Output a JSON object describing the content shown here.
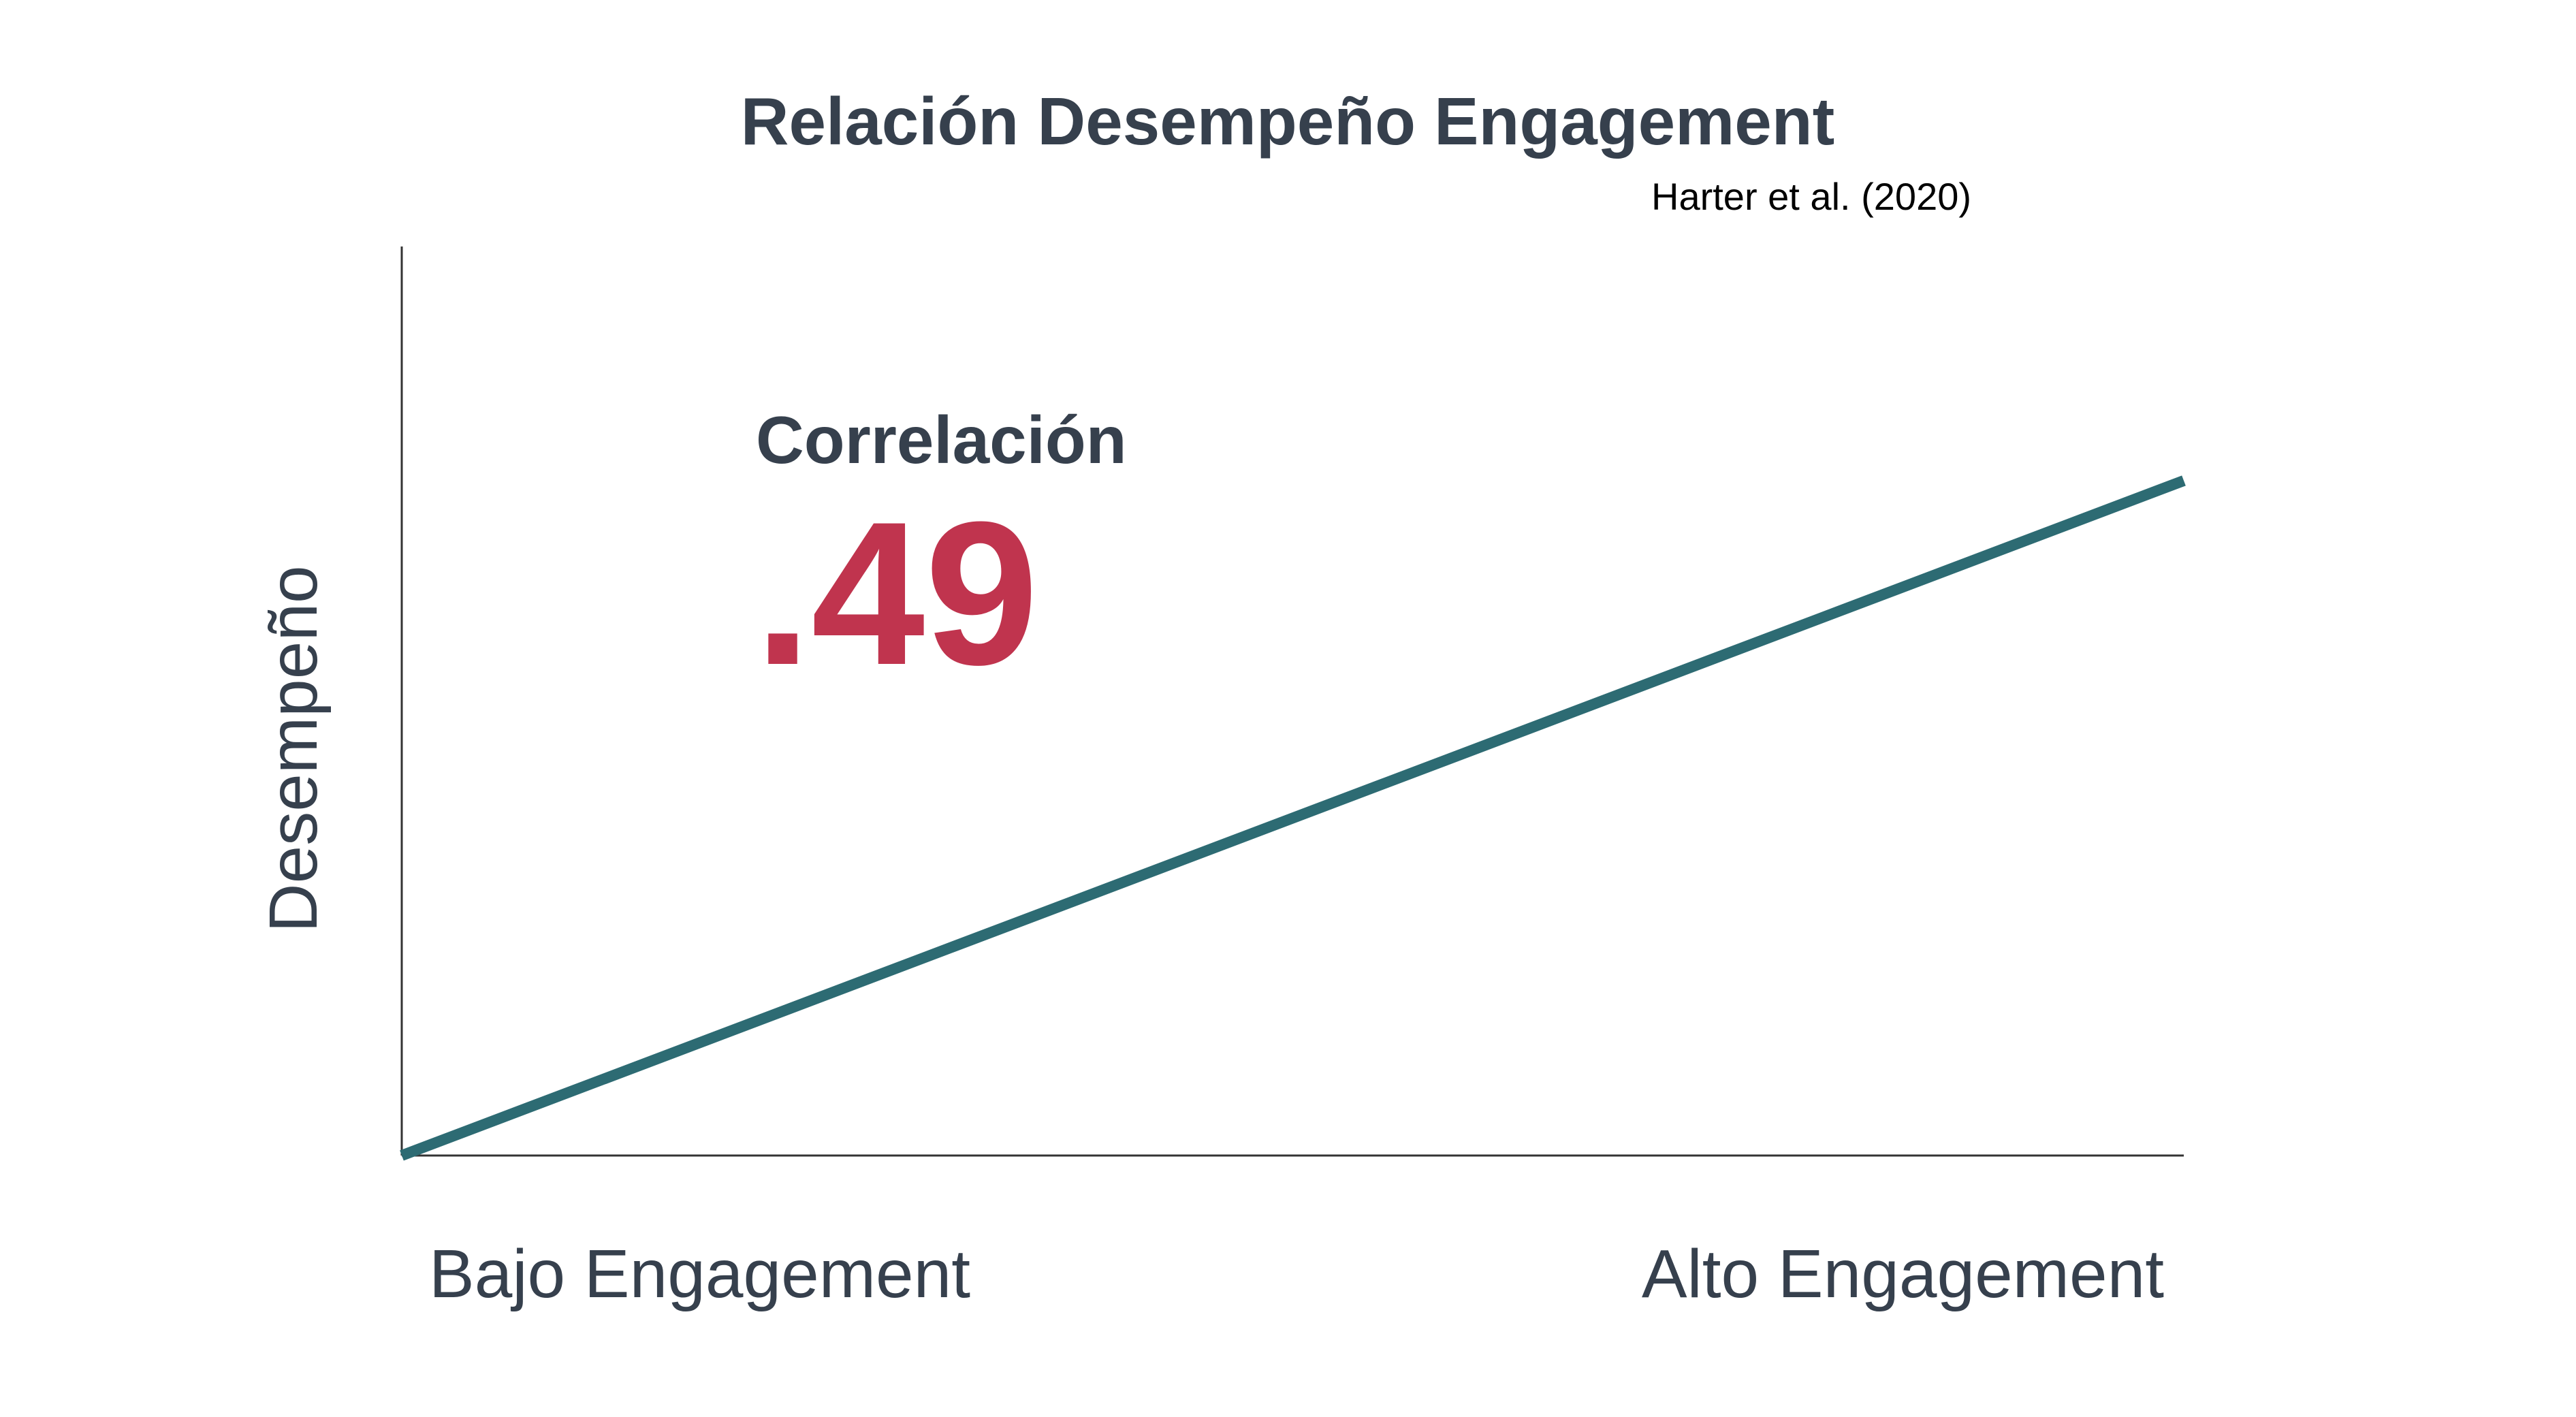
{
  "chart_data": {
    "type": "line",
    "title": "Relación Desempeño Engagement",
    "source": "Harter et al. (2020)",
    "xlabel": "",
    "ylabel": "Desempeño",
    "categories": [
      "Bajo Engagement",
      "Alto Engagement"
    ],
    "annotation": {
      "label": "Correlación",
      "value": ".49"
    },
    "series": [
      {
        "values": [
          0,
          0.49
        ]
      }
    ],
    "ylim": [
      0,
      0.66
    ],
    "grid": false,
    "legend": "none",
    "colors": {
      "line": "#2d6b73",
      "value": "#c0344e",
      "text": "#36404d",
      "axis": "#333333"
    }
  }
}
